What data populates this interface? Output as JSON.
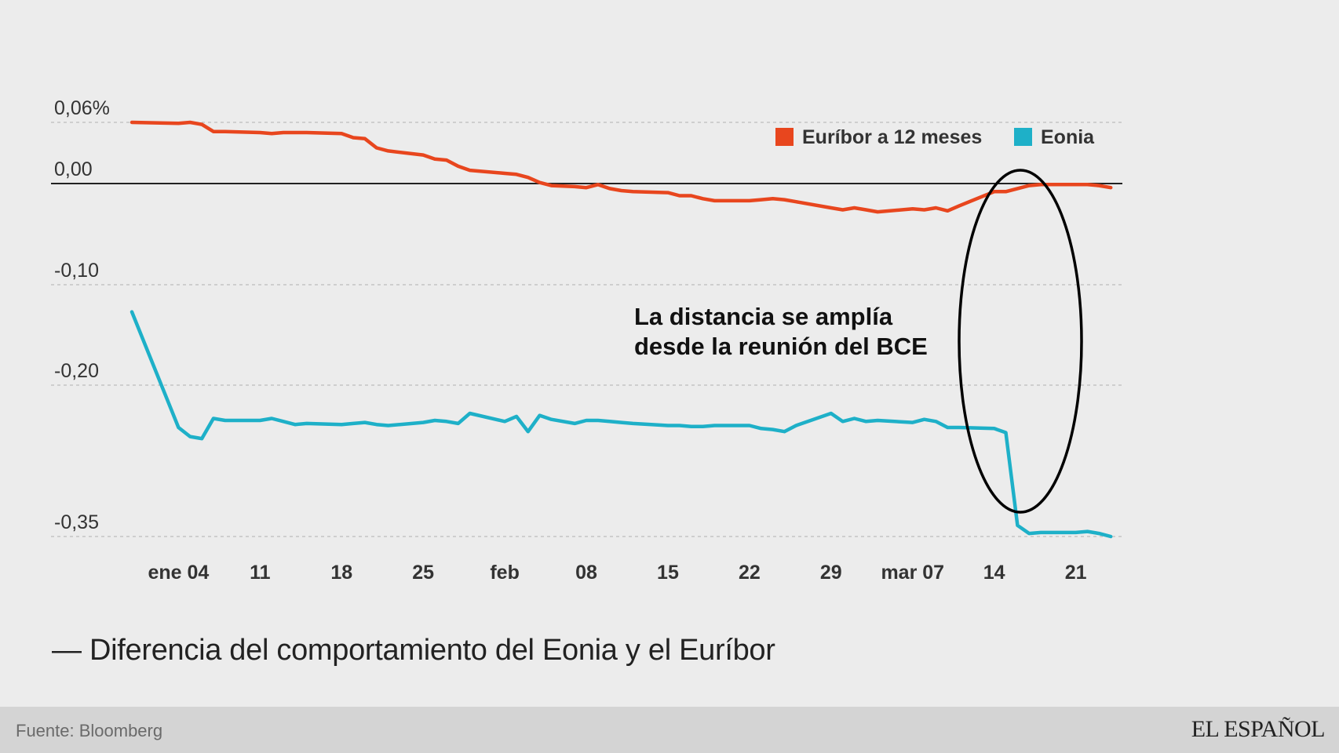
{
  "chart_data": {
    "type": "line",
    "title": "Diferencia del comportamiento del Eonia y el Euríbor",
    "title_prefix": "—",
    "source": "Fuente: Bloomberg",
    "brand": "EL ESPAÑOL",
    "annotation": [
      "La distancia se amplía",
      "desde la reunión del BCE"
    ],
    "xlabel": "",
    "ylabel": "",
    "x_ticks": [
      {
        "day": 4,
        "label": "ene 04"
      },
      {
        "day": 11,
        "label": "11"
      },
      {
        "day": 18,
        "label": "18"
      },
      {
        "day": 25,
        "label": "25"
      },
      {
        "day": 32,
        "label": "feb"
      },
      {
        "day": 39,
        "label": "08"
      },
      {
        "day": 46,
        "label": "15"
      },
      {
        "day": 53,
        "label": "22"
      },
      {
        "day": 60,
        "label": "29"
      },
      {
        "day": 67,
        "label": "mar 07"
      },
      {
        "day": 74,
        "label": "14"
      },
      {
        "day": 81,
        "label": "21"
      }
    ],
    "y_ticks": [
      {
        "value": 0.06,
        "label": "0,06%"
      },
      {
        "value": 0.0,
        "label": "0,00"
      },
      {
        "value": -0.1,
        "label": "-0,10"
      },
      {
        "value": -0.2,
        "label": "-0,20"
      },
      {
        "value": -0.35,
        "label": "-0,35"
      }
    ],
    "ylim": [
      -0.35,
      0.06
    ],
    "xlim": [
      0,
      85
    ],
    "legend_position": "top-right",
    "series": [
      {
        "name": "Euríbor a 12 meses",
        "color": "#e8461e",
        "x": [
          0,
          4,
          5,
          6,
          7,
          8,
          11,
          12,
          13,
          14,
          15,
          18,
          19,
          20,
          21,
          22,
          25,
          26,
          27,
          28,
          29,
          32,
          33,
          34,
          35,
          36,
          38,
          39,
          40,
          41,
          42,
          43,
          46,
          47,
          48,
          49,
          50,
          53,
          54,
          55,
          56,
          57,
          60,
          61,
          62,
          63,
          64,
          67,
          68,
          69,
          70,
          71,
          74,
          75,
          76,
          77,
          78,
          81,
          82,
          83,
          84
        ],
        "values": [
          0.06,
          0.059,
          0.06,
          0.058,
          0.051,
          0.051,
          0.05,
          0.049,
          0.05,
          0.05,
          0.05,
          0.049,
          0.045,
          0.044,
          0.035,
          0.032,
          0.028,
          0.024,
          0.023,
          0.017,
          0.013,
          0.01,
          0.009,
          0.006,
          0.001,
          -0.002,
          -0.003,
          -0.004,
          -0.001,
          -0.005,
          -0.007,
          -0.008,
          -0.009,
          -0.012,
          -0.012,
          -0.015,
          -0.017,
          -0.017,
          -0.016,
          -0.015,
          -0.016,
          -0.018,
          -0.024,
          -0.026,
          -0.024,
          -0.026,
          -0.028,
          -0.025,
          -0.026,
          -0.024,
          -0.027,
          -0.022,
          -0.008,
          -0.008,
          -0.005,
          -0.002,
          -0.001,
          -0.001,
          -0.001,
          -0.002,
          -0.004
        ]
      },
      {
        "name": "Eonia",
        "color": "#1eb0c8",
        "x": [
          0,
          4,
          5,
          6,
          7,
          8,
          11,
          12,
          13,
          14,
          15,
          18,
          19,
          20,
          21,
          22,
          25,
          26,
          27,
          28,
          29,
          32,
          33,
          34,
          35,
          36,
          38,
          39,
          40,
          41,
          42,
          43,
          46,
          47,
          48,
          49,
          50,
          53,
          54,
          55,
          56,
          57,
          60,
          61,
          62,
          63,
          64,
          67,
          68,
          69,
          70,
          71,
          74,
          75,
          76,
          77,
          78,
          81,
          82,
          83,
          84
        ],
        "values": [
          -0.127,
          -0.242,
          -0.251,
          -0.253,
          -0.233,
          -0.235,
          -0.235,
          -0.233,
          -0.236,
          -0.239,
          -0.238,
          -0.239,
          -0.238,
          -0.237,
          -0.239,
          -0.24,
          -0.237,
          -0.235,
          -0.236,
          -0.238,
          -0.228,
          -0.236,
          -0.231,
          -0.246,
          -0.23,
          -0.234,
          -0.238,
          -0.235,
          -0.235,
          -0.236,
          -0.237,
          -0.238,
          -0.24,
          -0.24,
          -0.241,
          -0.241,
          -0.24,
          -0.24,
          -0.243,
          -0.244,
          -0.246,
          -0.24,
          -0.228,
          -0.236,
          -0.233,
          -0.236,
          -0.235,
          -0.237,
          -0.234,
          -0.236,
          -0.242,
          -0.242,
          -0.243,
          -0.247,
          -0.339,
          -0.347,
          -0.346,
          -0.346,
          -0.345,
          -0.347,
          -0.35
        ]
      }
    ]
  }
}
